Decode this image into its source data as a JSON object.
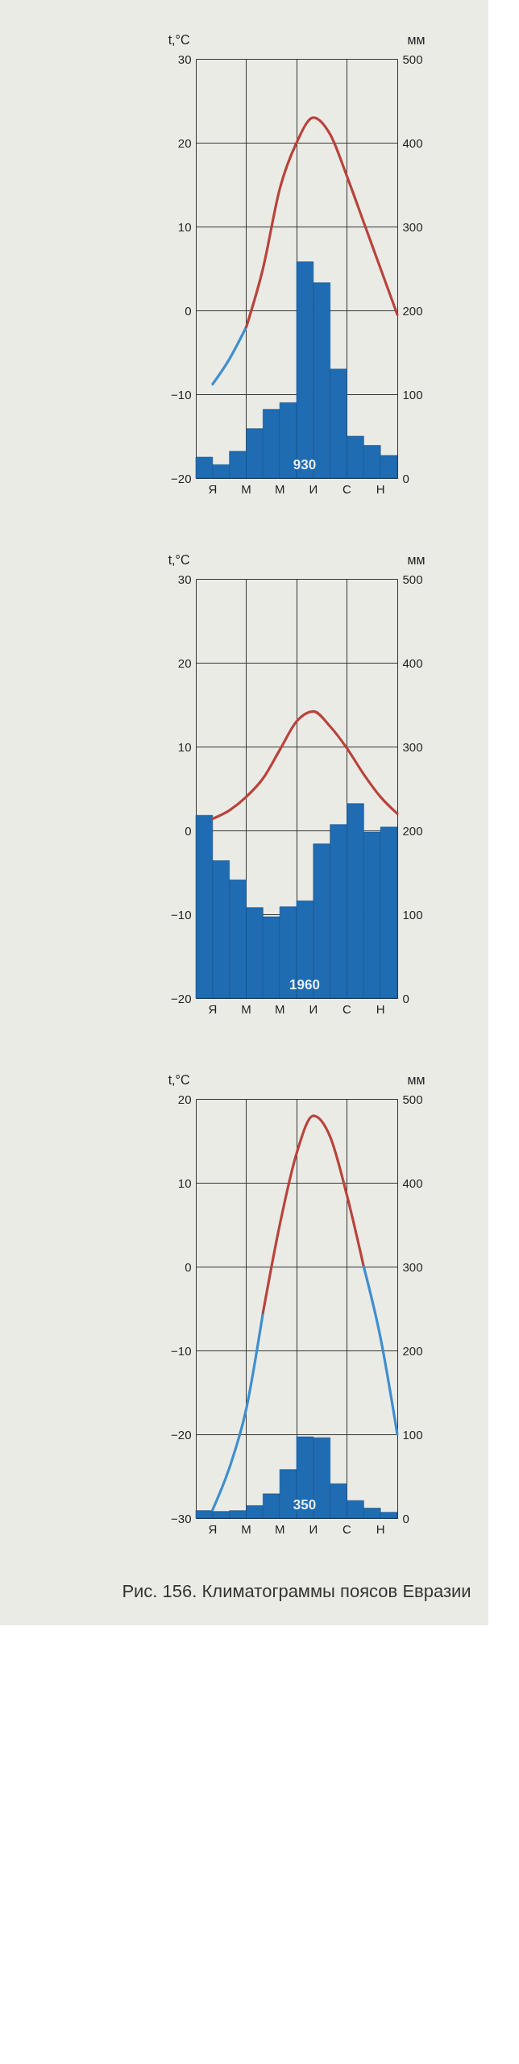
{
  "chart_data": [
    {
      "type": "bar",
      "ylabel": "t,°C",
      "y2label": "мм",
      "categories": [
        "Я",
        null,
        "М",
        null,
        "М",
        null,
        "И",
        null,
        "С",
        null,
        "Н",
        null
      ],
      "ylim": [
        -20,
        30
      ],
      "yticks": [
        -20,
        -10,
        0,
        10,
        20,
        30
      ],
      "y2lim": [
        0,
        500
      ],
      "y2ticks": [
        0,
        100,
        200,
        300,
        400,
        500
      ],
      "grid": true,
      "annotations": [
        "930"
      ],
      "series": [
        {
          "axis": "y2",
          "color": "#1f6cb3",
          "values": [
            25,
            16,
            32,
            59,
            82,
            90,
            258,
            233,
            130,
            50,
            39,
            27
          ]
        },
        {
          "type": "line",
          "color": "#3f8fcf",
          "values": [
            -8.8,
            -5.8,
            -2,
            null,
            null,
            null,
            null,
            null,
            null,
            null,
            null,
            null
          ]
        },
        {
          "type": "line",
          "color": "#b8443c",
          "values": [
            null,
            null,
            -2,
            5,
            14.5,
            20,
            23,
            21,
            16,
            10.5,
            5,
            -0.5
          ]
        }
      ]
    },
    {
      "type": "bar",
      "ylabel": "t,°C",
      "y2label": "мм",
      "categories": [
        "Я",
        null,
        "М",
        null,
        "М",
        null,
        "И",
        null,
        "С",
        null,
        "Н",
        null
      ],
      "ylim": [
        -20,
        30
      ],
      "yticks": [
        -20,
        -10,
        0,
        10,
        20,
        30
      ],
      "y2lim": [
        0,
        500
      ],
      "y2ticks": [
        0,
        100,
        200,
        300,
        400,
        500
      ],
      "grid": true,
      "annotations": [
        "1960"
      ],
      "series": [
        {
          "axis": "y2",
          "color": "#1f6cb3",
          "values": [
            218,
            164,
            141,
            108,
            97,
            109,
            116,
            184,
            207,
            232,
            198,
            204
          ]
        },
        {
          "type": "line",
          "color": "#b8443c",
          "values": [
            1.4,
            2.4,
            4,
            6.2,
            9.6,
            13,
            14.2,
            12.4,
            9.8,
            6.7,
            4,
            2
          ]
        }
      ]
    },
    {
      "type": "bar",
      "ylabel": "t,°C",
      "y2label": "мм",
      "categories": [
        "Я",
        null,
        "М",
        null,
        "М",
        null,
        "И",
        null,
        "С",
        null,
        "Н",
        null
      ],
      "ylim": [
        -30,
        20
      ],
      "yticks": [
        -30,
        -20,
        -10,
        0,
        10,
        20
      ],
      "y2lim": [
        0,
        500
      ],
      "y2ticks": [
        0,
        100,
        200,
        300,
        400,
        500
      ],
      "grid": true,
      "annotations": [
        "350",
        "Рис. 156. Климатограммы поясов Евразии"
      ],
      "series": [
        {
          "axis": "y2",
          "color": "#1f6cb3",
          "values": [
            9,
            8,
            9,
            15,
            29,
            58,
            97,
            96,
            41,
            21,
            12,
            7
          ]
        },
        {
          "type": "line",
          "color": "#3f8fcf",
          "values": [
            -29,
            -24,
            -17,
            -5.5,
            null,
            null,
            null,
            null,
            null,
            null,
            null,
            null
          ]
        },
        {
          "type": "line",
          "color": "#b8443c",
          "values": [
            null,
            null,
            null,
            -5.5,
            5,
            13.5,
            18,
            15.5,
            8.5,
            0,
            null,
            null
          ]
        },
        {
          "type": "line",
          "color": "#3f8fcf",
          "values": [
            null,
            null,
            null,
            null,
            null,
            null,
            null,
            null,
            null,
            0,
            -8.5,
            -20
          ]
        }
      ]
    }
  ]
}
